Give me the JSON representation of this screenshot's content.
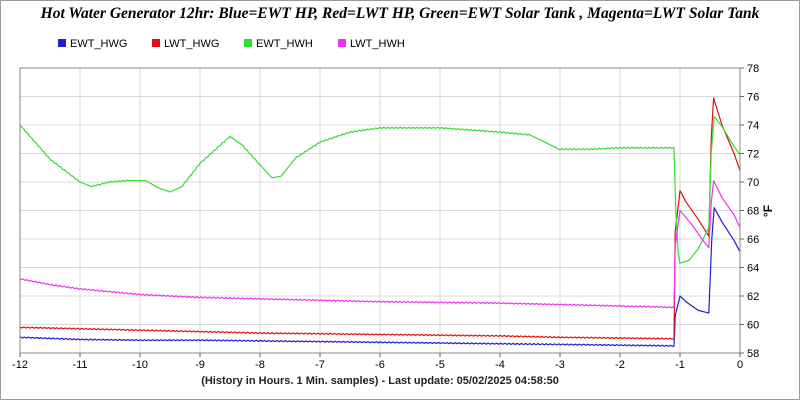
{
  "chart_data": {
    "type": "line",
    "title": "Hot Water Generator 12hr: Blue=EWT HP, Red=LWT HP, Green=EWT Solar Tank , Magenta=LWT Solar Tank",
    "xlabel": "(History in Hours. 1 Min. samples) - Last update: 05/02/2025 04:58:50",
    "ylabel": "°F",
    "xlim": [
      -12,
      0
    ],
    "ylim": [
      58,
      78
    ],
    "x_ticks": [
      "-12",
      "-11",
      "-10",
      "-9",
      "-8",
      "-7",
      "-6",
      "-5",
      "-4",
      "-3",
      "-2",
      "-1",
      "0"
    ],
    "y_ticks": [
      "58",
      "60",
      "62",
      "64",
      "66",
      "68",
      "70",
      "72",
      "74",
      "76",
      "78"
    ],
    "grid": true,
    "legend_position": "top-left",
    "series": [
      {
        "name": "EWT_HWG",
        "color": "#1f1fd0",
        "points": [
          [
            -12,
            59.1
          ],
          [
            -11,
            58.95
          ],
          [
            -10,
            58.9
          ],
          [
            -9,
            58.9
          ],
          [
            -8,
            58.85
          ],
          [
            -7,
            58.8
          ],
          [
            -6,
            58.75
          ],
          [
            -5,
            58.7
          ],
          [
            -4,
            58.65
          ],
          [
            -3,
            58.6
          ],
          [
            -2,
            58.55
          ],
          [
            -1.1,
            58.5
          ],
          [
            -1.08,
            60.6
          ],
          [
            -1.0,
            62.0
          ],
          [
            -0.9,
            61.6
          ],
          [
            -0.7,
            61.0
          ],
          [
            -0.52,
            60.8
          ],
          [
            -0.47,
            66.0
          ],
          [
            -0.43,
            68.2
          ],
          [
            -0.3,
            67.2
          ],
          [
            -0.1,
            65.9
          ],
          [
            0,
            65.1
          ]
        ]
      },
      {
        "name": "LWT_HWG",
        "color": "#e01010",
        "points": [
          [
            -12,
            59.8
          ],
          [
            -11,
            59.7
          ],
          [
            -10,
            59.6
          ],
          [
            -9,
            59.5
          ],
          [
            -8,
            59.4
          ],
          [
            -7,
            59.35
          ],
          [
            -6,
            59.3
          ],
          [
            -5,
            59.25
          ],
          [
            -4,
            59.2
          ],
          [
            -3,
            59.1
          ],
          [
            -2,
            59.05
          ],
          [
            -1.1,
            59.0
          ],
          [
            -1.08,
            66.5
          ],
          [
            -1.0,
            69.4
          ],
          [
            -0.9,
            68.6
          ],
          [
            -0.7,
            67.4
          ],
          [
            -0.52,
            66.2
          ],
          [
            -0.48,
            73.0
          ],
          [
            -0.44,
            75.9
          ],
          [
            -0.3,
            74.0
          ],
          [
            -0.1,
            72.0
          ],
          [
            0,
            70.8
          ]
        ]
      },
      {
        "name": "EWT_HWH",
        "color": "#33dd33",
        "points": [
          [
            -12,
            74.0
          ],
          [
            -11.5,
            71.6
          ],
          [
            -11,
            70.0
          ],
          [
            -10.8,
            69.7
          ],
          [
            -10.5,
            70.0
          ],
          [
            -10.2,
            70.1
          ],
          [
            -9.9,
            70.1
          ],
          [
            -9.7,
            69.6
          ],
          [
            -9.5,
            69.3
          ],
          [
            -9.3,
            69.7
          ],
          [
            -9.0,
            71.3
          ],
          [
            -8.5,
            73.2
          ],
          [
            -8.3,
            72.6
          ],
          [
            -8.0,
            71.2
          ],
          [
            -7.8,
            70.3
          ],
          [
            -7.65,
            70.4
          ],
          [
            -7.4,
            71.7
          ],
          [
            -7.0,
            72.8
          ],
          [
            -6.5,
            73.5
          ],
          [
            -6.0,
            73.8
          ],
          [
            -5.0,
            73.8
          ],
          [
            -4.0,
            73.5
          ],
          [
            -3.5,
            73.3
          ],
          [
            -3.3,
            72.9
          ],
          [
            -3.0,
            72.3
          ],
          [
            -2.5,
            72.3
          ],
          [
            -2.0,
            72.4
          ],
          [
            -1.1,
            72.4
          ],
          [
            -1.07,
            68.0
          ],
          [
            -1.03,
            65.0
          ],
          [
            -1.0,
            64.3
          ],
          [
            -0.85,
            64.5
          ],
          [
            -0.7,
            65.3
          ],
          [
            -0.52,
            66.8
          ],
          [
            -0.48,
            72.0
          ],
          [
            -0.43,
            74.6
          ],
          [
            -0.3,
            73.9
          ],
          [
            -0.1,
            72.5
          ],
          [
            0,
            71.9
          ]
        ]
      },
      {
        "name": "LWT_HWH",
        "color": "#ee33ee",
        "points": [
          [
            -12,
            63.2
          ],
          [
            -11.5,
            62.8
          ],
          [
            -11,
            62.5
          ],
          [
            -10,
            62.1
          ],
          [
            -9,
            61.9
          ],
          [
            -8,
            61.8
          ],
          [
            -7,
            61.7
          ],
          [
            -6,
            61.6
          ],
          [
            -5,
            61.55
          ],
          [
            -4,
            61.5
          ],
          [
            -3,
            61.4
          ],
          [
            -2,
            61.3
          ],
          [
            -1.1,
            61.2
          ],
          [
            -1.08,
            65.5
          ],
          [
            -1.0,
            68.0
          ],
          [
            -0.8,
            67.0
          ],
          [
            -0.6,
            65.8
          ],
          [
            -0.52,
            65.4
          ],
          [
            -0.48,
            68.5
          ],
          [
            -0.44,
            70.1
          ],
          [
            -0.3,
            68.9
          ],
          [
            -0.1,
            67.7
          ],
          [
            0,
            66.8
          ]
        ]
      }
    ]
  }
}
